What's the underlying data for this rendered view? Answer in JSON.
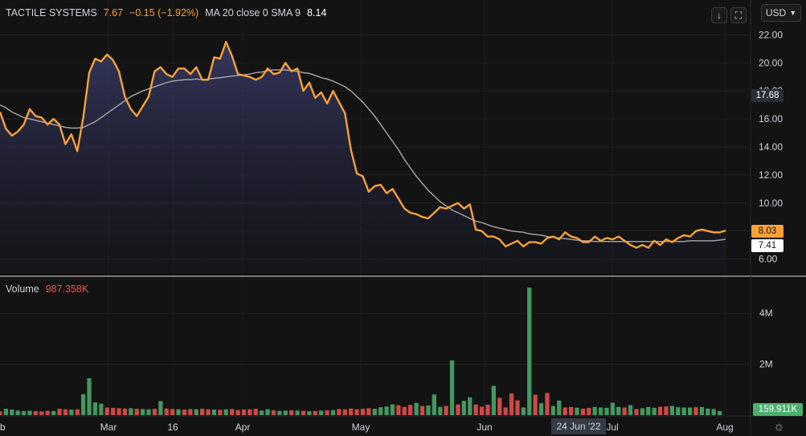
{
  "legend": {
    "symbol": "TACTILE SYSTEMS",
    "last": "7.67",
    "change": "−0.15 (−1.92%)",
    "ma_label": "MA 20 close 0 SMA 9",
    "ma_value": "8.14"
  },
  "volume_legend": {
    "label": "Volume",
    "value": "987.358K"
  },
  "currency": {
    "label": "USD"
  },
  "buttons": {
    "down_icon": "↓",
    "fullscreen_icon": "⛶"
  },
  "price_tags": {
    "crosshair": "17.68",
    "last": "8.03",
    "ma": "7.41",
    "volume": "159.911K"
  },
  "crosshair_date": "24 Jun '22",
  "colors": {
    "price_line": "#f7a13b",
    "ma_line": "#a0a0a0",
    "up": "#4caf6e",
    "down": "#ef5350"
  },
  "chart_data": [
    {
      "type": "area",
      "title": "TACTILE SYSTEMS",
      "ylim": [
        5.0,
        23.0
      ],
      "y_ticks": [
        "6.00",
        "8.00",
        "10.00",
        "12.00",
        "14.00",
        "16.00",
        "18.00",
        "20.00",
        "22.00"
      ],
      "x_ticks": [
        "b",
        "Mar",
        "16",
        "Apr",
        "May",
        "Jun",
        "Jul",
        "Aug"
      ],
      "series": [
        {
          "name": "Close",
          "values": [
            16.5,
            15.3,
            14.8,
            15.1,
            15.6,
            16.7,
            16.2,
            16.1,
            15.6,
            16.0,
            15.6,
            14.2,
            14.9,
            13.7,
            16.1,
            19.3,
            20.3,
            20.1,
            20.6,
            20.2,
            19.4,
            17.6,
            16.7,
            16.2,
            16.9,
            17.6,
            19.4,
            19.7,
            19.2,
            19.0,
            19.6,
            19.6,
            19.2,
            19.7,
            18.8,
            18.8,
            20.4,
            20.3,
            21.5,
            20.5,
            19.2,
            19.1,
            19.0,
            18.8,
            19.0,
            19.6,
            19.2,
            19.3,
            20.0,
            19.4,
            19.6,
            18.0,
            18.6,
            17.5,
            17.9,
            17.1,
            18.0,
            17.2,
            16.4,
            13.8,
            12.1,
            11.9,
            10.8,
            11.2,
            11.3,
            10.7,
            11.0,
            10.3,
            9.6,
            9.3,
            9.2,
            9.0,
            8.9,
            9.3,
            9.7,
            9.6,
            9.8,
            10.0,
            9.6,
            9.9,
            8.1,
            8.0,
            7.6,
            7.6,
            7.4,
            6.9,
            7.1,
            7.3,
            6.9,
            7.2,
            7.2,
            7.1,
            7.5,
            7.6,
            7.4,
            7.9,
            7.6,
            7.5,
            7.2,
            7.2,
            7.6,
            7.3,
            7.5,
            7.4,
            7.6,
            7.3,
            7.0,
            6.8,
            7.0,
            6.8,
            7.3,
            7.0,
            7.4,
            7.2,
            7.5,
            7.7,
            7.6,
            8.0,
            8.1,
            8.0,
            7.9,
            7.9,
            8.03
          ]
        },
        {
          "name": "MA 20",
          "values": [
            17.0,
            16.8,
            16.5,
            16.3,
            16.1,
            16.0,
            15.9,
            15.8,
            15.7,
            15.6,
            15.5,
            15.4,
            15.35,
            15.35,
            15.4,
            15.6,
            15.8,
            16.1,
            16.4,
            16.7,
            17.0,
            17.3,
            17.6,
            17.8,
            18.0,
            18.15,
            18.3,
            18.45,
            18.6,
            18.7,
            18.75,
            18.8,
            18.8,
            18.85,
            18.8,
            18.85,
            18.9,
            18.95,
            19.0,
            19.05,
            19.1,
            19.15,
            19.2,
            19.3,
            19.35,
            19.45,
            19.5,
            19.5,
            19.5,
            19.45,
            19.4,
            19.3,
            19.25,
            19.1,
            18.95,
            18.85,
            18.7,
            18.5,
            18.3,
            18.0,
            17.6,
            17.2,
            16.7,
            16.2,
            15.6,
            15.0,
            14.4,
            13.8,
            13.1,
            12.5,
            11.9,
            11.4,
            10.9,
            10.5,
            10.1,
            9.8,
            9.5,
            9.3,
            9.1,
            8.9,
            8.7,
            8.6,
            8.45,
            8.3,
            8.2,
            8.1,
            8.0,
            7.95,
            7.9,
            7.8,
            7.75,
            7.7,
            7.6,
            7.55,
            7.5,
            7.45,
            7.4,
            7.35,
            7.3,
            7.3,
            7.25,
            7.25,
            7.25,
            7.25,
            7.25,
            7.25,
            7.25,
            7.25,
            7.25,
            7.25,
            7.25,
            7.25,
            7.25,
            7.25,
            7.25,
            7.25,
            7.3,
            7.3,
            7.3,
            7.3,
            7.3,
            7.35,
            7.41
          ]
        }
      ]
    },
    {
      "type": "bar",
      "title": "Volume",
      "ylim": [
        0,
        5200000
      ],
      "y_ticks": [
        "2M",
        "4M"
      ],
      "values": [
        150000,
        250000,
        220000,
        180000,
        160000,
        170000,
        160000,
        150000,
        170000,
        160000,
        250000,
        230000,
        220000,
        230000,
        820000,
        1450000,
        500000,
        450000,
        300000,
        280000,
        270000,
        260000,
        270000,
        250000,
        240000,
        230000,
        250000,
        550000,
        260000,
        240000,
        230000,
        220000,
        240000,
        230000,
        250000,
        230000,
        220000,
        210000,
        230000,
        240000,
        200000,
        220000,
        230000,
        250000,
        180000,
        230000,
        190000,
        170000,
        180000,
        190000,
        180000,
        170000,
        150000,
        160000,
        180000,
        190000,
        200000,
        240000,
        230000,
        260000,
        230000,
        250000,
        270000,
        250000,
        310000,
        340000,
        420000,
        390000,
        320000,
        400000,
        480000,
        360000,
        380000,
        810000,
        320000,
        360000,
        2150000,
        420000,
        560000,
        700000,
        420000,
        330000,
        410000,
        1150000,
        680000,
        300000,
        850000,
        580000,
        300000,
        5000000,
        800000,
        470000,
        870000,
        360000,
        570000,
        300000,
        320000,
        290000,
        250000,
        280000,
        320000,
        300000,
        290000,
        490000,
        320000,
        300000,
        390000,
        240000,
        270000,
        320000,
        290000,
        330000,
        340000,
        360000,
        310000,
        300000,
        300000,
        310000,
        320000,
        260000,
        240000,
        159911
      ],
      "up": [
        false,
        true,
        true,
        true,
        true,
        true,
        false,
        false,
        false,
        true,
        false,
        false,
        true,
        false,
        true,
        true,
        true,
        true,
        false,
        false,
        false,
        false,
        true,
        false,
        true,
        true,
        false,
        true,
        false,
        false,
        true,
        false,
        false,
        true,
        false,
        false,
        true,
        false,
        true,
        false,
        false,
        false,
        false,
        false,
        true,
        true,
        false,
        true,
        true,
        false,
        true,
        false,
        true,
        false,
        true,
        false,
        true,
        false,
        false,
        false,
        false,
        false,
        false,
        true,
        true,
        true,
        true,
        false,
        false,
        false,
        true,
        false,
        true,
        true,
        true,
        false,
        true,
        false,
        true,
        true,
        false,
        false,
        false,
        true,
        false,
        false,
        false,
        false,
        true,
        true,
        false,
        true,
        false,
        true,
        true,
        false,
        false,
        true,
        false,
        false,
        true,
        true,
        true,
        true,
        true,
        false,
        true,
        false,
        true,
        true,
        true,
        false,
        false,
        true,
        true,
        true,
        true,
        false,
        true,
        true,
        true,
        true
      ]
    }
  ]
}
